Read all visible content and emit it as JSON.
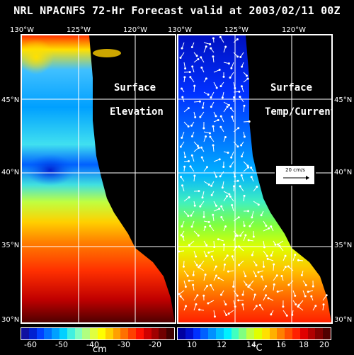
{
  "title": "NRL NPACNFS 72-Hr Forecast valid at 2003/02/11 00Z",
  "top_longitudes_left": [
    "130°W",
    "125°W",
    "120°W"
  ],
  "top_longitudes_right": [
    "130°W",
    "125°W",
    "120°W"
  ],
  "latitudes": [
    "45°N",
    "40°N",
    "35°N",
    "30°N"
  ],
  "left_panel": {
    "label_line1": "Surface",
    "label_line2": "Elevation",
    "colorbar_ticks": [
      "-60",
      "-50",
      "-40",
      "-30",
      "-20"
    ],
    "unit": "cm",
    "colors": [
      "#1010a0",
      "#0020d0",
      "#0040ff",
      "#0070ff",
      "#00a0ff",
      "#00d0ff",
      "#40f0e0",
      "#80ffc0",
      "#b0ff80",
      "#e0ff40",
      "#ffff00",
      "#ffd000",
      "#ffa000",
      "#ff7000",
      "#ff4000",
      "#ff1000",
      "#d00000",
      "#a00000",
      "#700000",
      "#400000"
    ]
  },
  "right_panel": {
    "label_line1": "Surface",
    "label_line2": "Temp/Current",
    "colorbar_ticks": [
      "10",
      "12",
      "14",
      "16",
      "18",
      "20"
    ],
    "unit": "°C",
    "scale_label": "20 cm/s",
    "colors": [
      "#0000a0",
      "#0010d0",
      "#0030ff",
      "#0060ff",
      "#0090ff",
      "#00c0ff",
      "#00f0ff",
      "#40ffc0",
      "#80ff80",
      "#c0ff40",
      "#e0ff00",
      "#ffe000",
      "#ffb000",
      "#ff8000",
      "#ff5000",
      "#ff2000",
      "#e00000",
      "#b00000",
      "#800000",
      "#500000"
    ]
  }
}
